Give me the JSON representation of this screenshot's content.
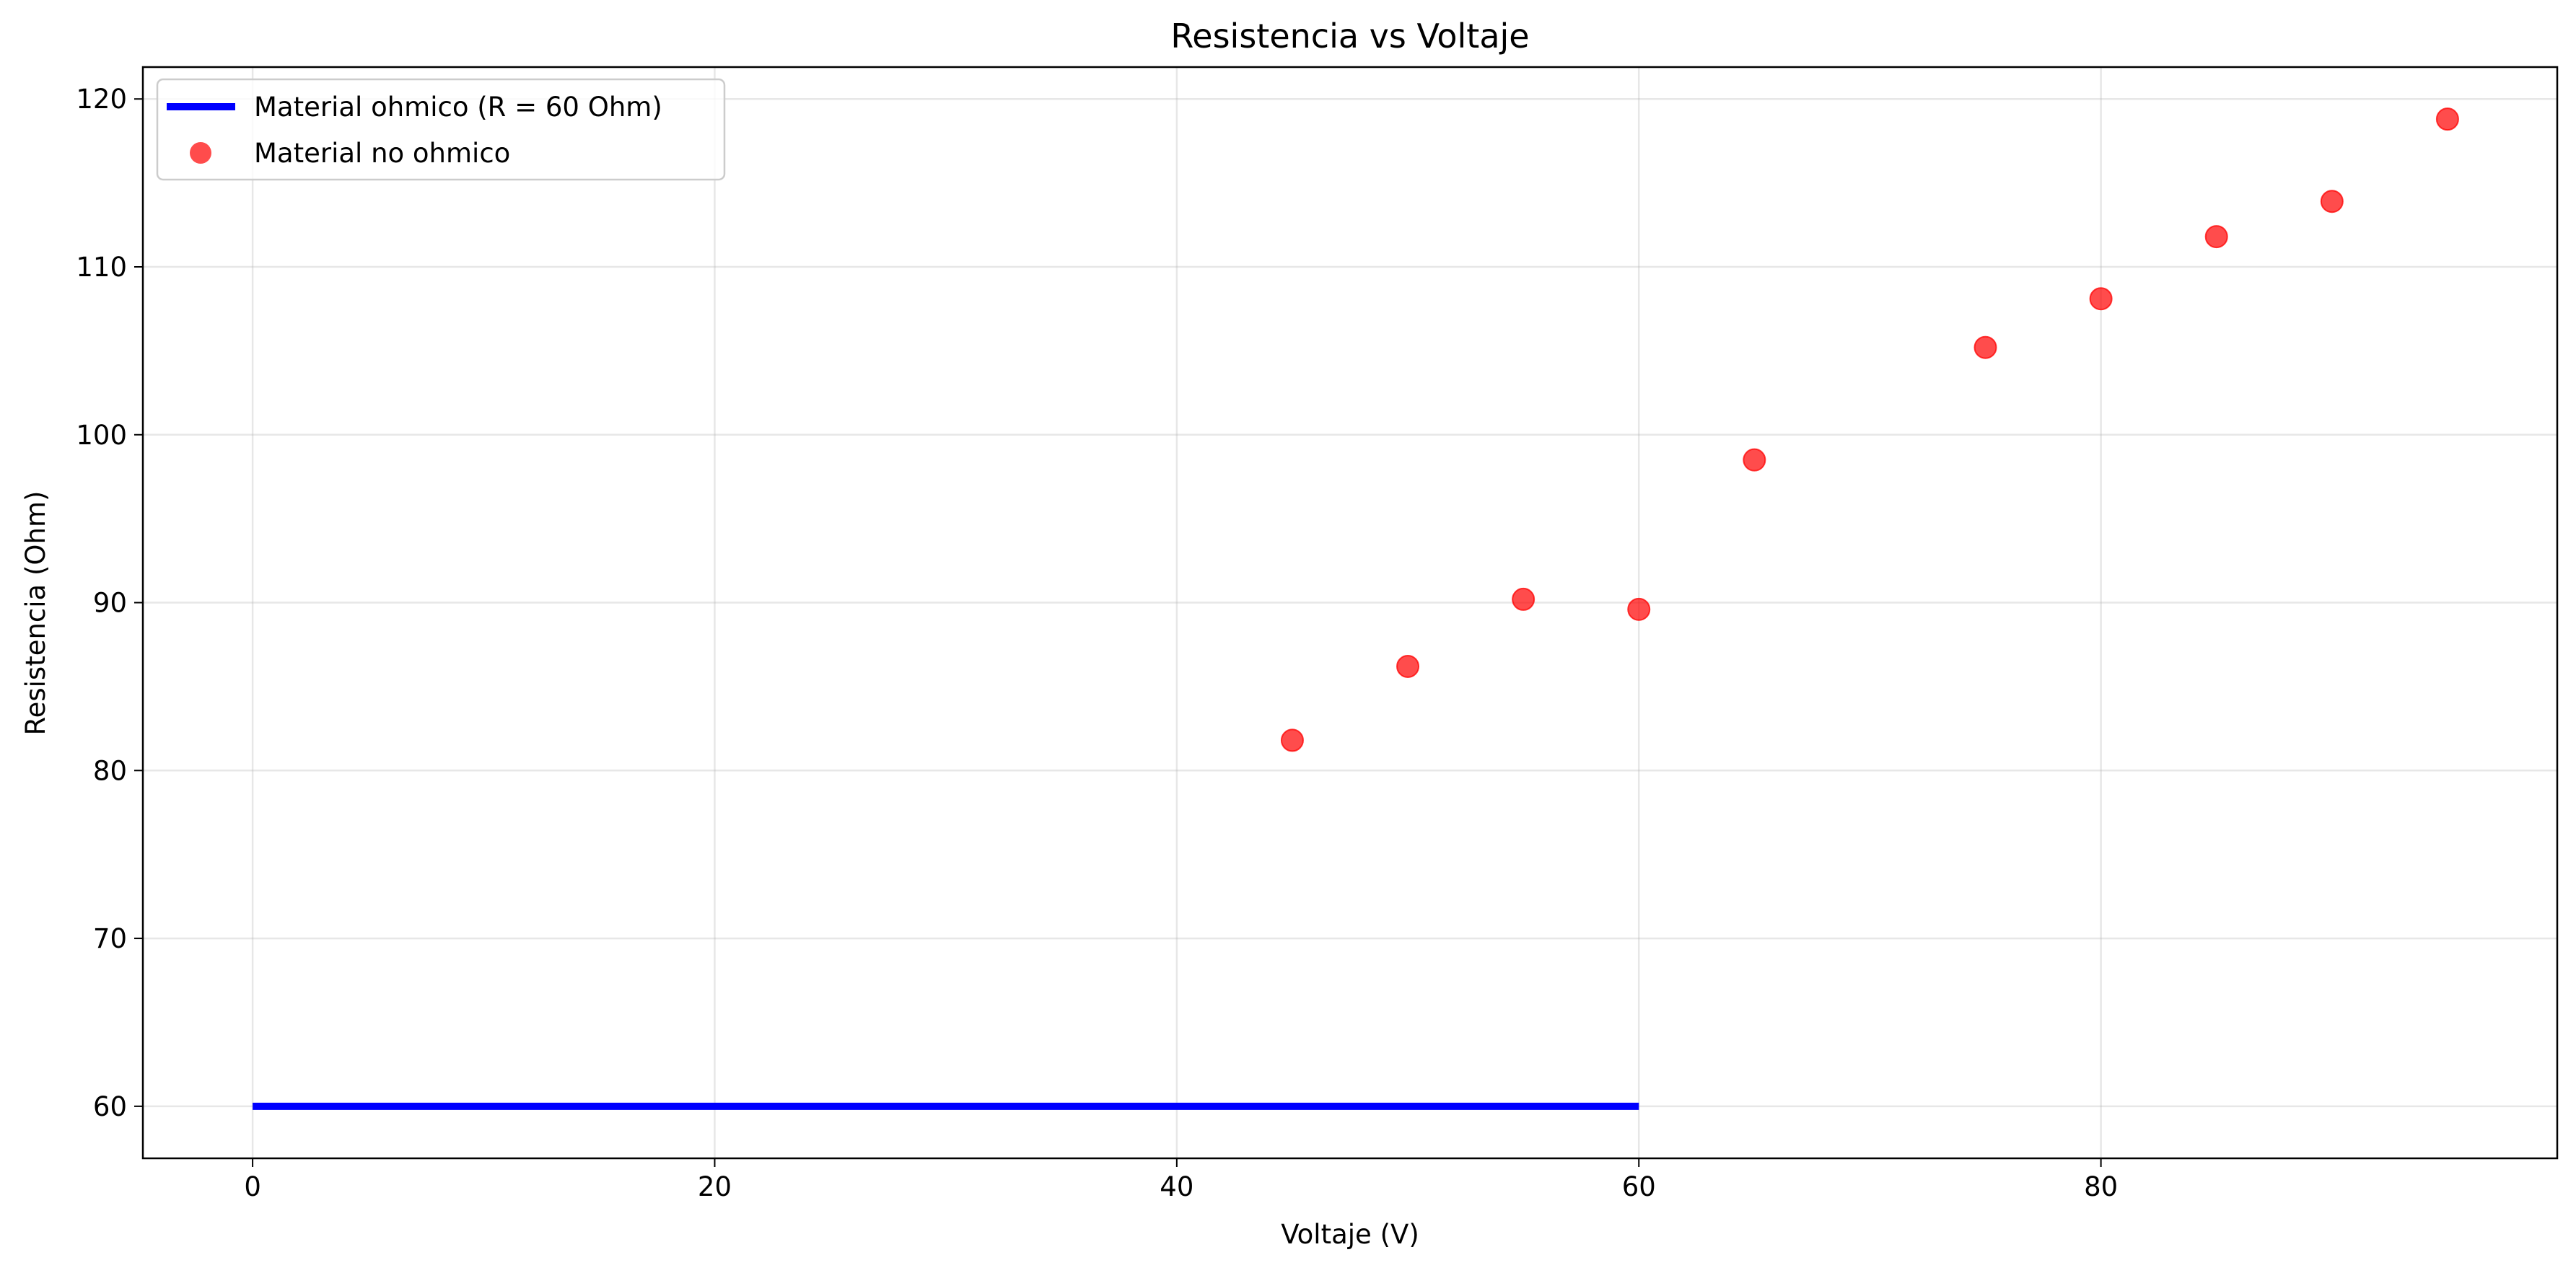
{
  "chart_data": {
    "type": "scatter",
    "title": "Resistencia vs Voltaje",
    "xlabel": "Voltaje (V)",
    "ylabel": "Resistencia (Ohm)",
    "xlim": [
      -4.75,
      99.75
    ],
    "ylim": [
      56.9,
      121.9
    ],
    "xticks": [
      0,
      20,
      40,
      60,
      80
    ],
    "yticks": [
      60,
      70,
      80,
      90,
      100,
      110,
      120
    ],
    "grid": true,
    "legend_position": "top-left",
    "series": [
      {
        "name": "Material ohmico (R = 60 Ohm)",
        "kind": "line",
        "color": "#0000ff",
        "x": [
          0,
          60
        ],
        "y": [
          60,
          60
        ]
      },
      {
        "name": "Material no ohmico",
        "kind": "scatter",
        "color": "#ff0000",
        "x": [
          45,
          50,
          55,
          60,
          65,
          75,
          80,
          85,
          90,
          95
        ],
        "y": [
          81.8,
          86.2,
          90.2,
          89.6,
          98.5,
          105.2,
          108.1,
          111.8,
          113.9,
          118.8
        ]
      }
    ]
  }
}
